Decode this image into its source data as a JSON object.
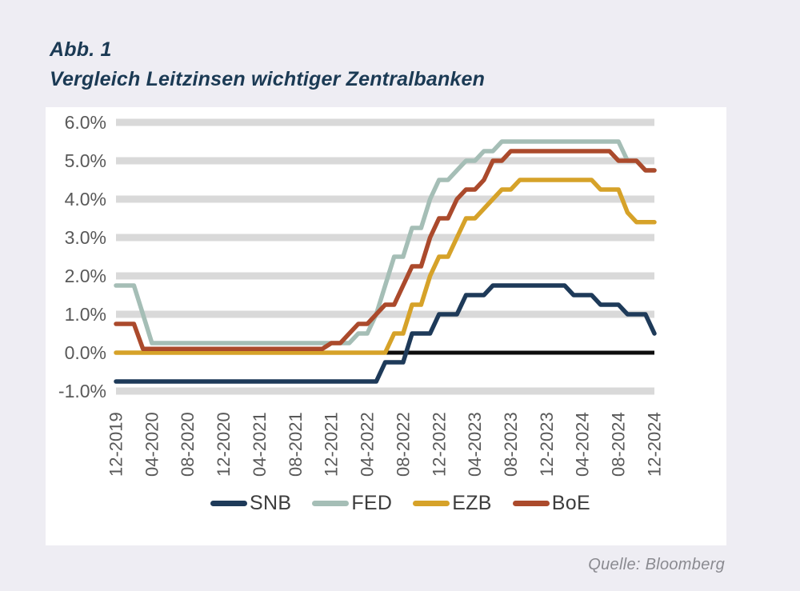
{
  "figure": {
    "label": "Abb. 1",
    "title": "Vergleich Leitzinsen wichtiger Zentralbanken"
  },
  "source": "Quelle: Bloomberg",
  "colors": {
    "page_background": "#eeedf3",
    "panel_background": "#ffffff",
    "gridline_band": "#d9d9d9",
    "zero_axis": "#0d0d0d",
    "title_text": "#1b3a54",
    "axis_text": "#595959",
    "legend_text": "#3d3d3d",
    "source_text": "#8a8a90"
  },
  "chart_data": {
    "type": "line",
    "title": "Vergleich Leitzinsen wichtiger Zentralbanken",
    "xlabel": "",
    "ylabel": "",
    "x_unit": "monthly, 12-2019 through 12-2024",
    "ylim": [
      -1.0,
      6.0
    ],
    "grid": "horizontal bands",
    "legend_position": "bottom",
    "y_ticks": [
      {
        "label": "6.0%",
        "value": 6.0
      },
      {
        "label": "5.0%",
        "value": 5.0
      },
      {
        "label": "4.0%",
        "value": 4.0
      },
      {
        "label": "3.0%",
        "value": 3.0
      },
      {
        "label": "2.0%",
        "value": 2.0
      },
      {
        "label": "1.0%",
        "value": 1.0
      },
      {
        "label": "0.0%",
        "value": 0.0
      },
      {
        "label": "-1.0%",
        "value": -1.0
      }
    ],
    "gridline_levels": [
      6,
      5,
      4,
      3,
      2,
      1,
      -1
    ],
    "zero_axis_at": 0.0,
    "x_ticks": [
      {
        "label": "12-2019",
        "month": 0
      },
      {
        "label": "04-2020",
        "month": 4
      },
      {
        "label": "08-2020",
        "month": 8
      },
      {
        "label": "12-2020",
        "month": 12
      },
      {
        "label": "04-2021",
        "month": 16
      },
      {
        "label": "08-2021",
        "month": 20
      },
      {
        "label": "12-2021",
        "month": 24
      },
      {
        "label": "04-2022",
        "month": 28
      },
      {
        "label": "08-2022",
        "month": 32
      },
      {
        "label": "12-2022",
        "month": 36
      },
      {
        "label": "04-2023",
        "month": 40
      },
      {
        "label": "08-2023",
        "month": 44
      },
      {
        "label": "12-2023",
        "month": 48
      },
      {
        "label": "04-2024",
        "month": 52
      },
      {
        "label": "08-2024",
        "month": 56
      },
      {
        "label": "12-2024",
        "month": 60
      }
    ],
    "series": [
      {
        "name": "SNB",
        "color": "#1e3a59",
        "values": [
          -0.75,
          -0.75,
          -0.75,
          -0.75,
          -0.75,
          -0.75,
          -0.75,
          -0.75,
          -0.75,
          -0.75,
          -0.75,
          -0.75,
          -0.75,
          -0.75,
          -0.75,
          -0.75,
          -0.75,
          -0.75,
          -0.75,
          -0.75,
          -0.75,
          -0.75,
          -0.75,
          -0.75,
          -0.75,
          -0.75,
          -0.75,
          -0.75,
          -0.75,
          -0.75,
          -0.25,
          -0.25,
          -0.25,
          0.5,
          0.5,
          0.5,
          1.0,
          1.0,
          1.0,
          1.5,
          1.5,
          1.5,
          1.75,
          1.75,
          1.75,
          1.75,
          1.75,
          1.75,
          1.75,
          1.75,
          1.75,
          1.5,
          1.5,
          1.5,
          1.25,
          1.25,
          1.25,
          1.0,
          1.0,
          1.0,
          0.5
        ]
      },
      {
        "name": "FED",
        "color": "#a5beb6",
        "values": [
          1.75,
          1.75,
          1.75,
          1.0,
          0.25,
          0.25,
          0.25,
          0.25,
          0.25,
          0.25,
          0.25,
          0.25,
          0.25,
          0.25,
          0.25,
          0.25,
          0.25,
          0.25,
          0.25,
          0.25,
          0.25,
          0.25,
          0.25,
          0.25,
          0.25,
          0.25,
          0.25,
          0.5,
          0.5,
          1.0,
          1.75,
          2.5,
          2.5,
          3.25,
          3.25,
          4.0,
          4.5,
          4.5,
          4.75,
          5.0,
          5.0,
          5.25,
          5.25,
          5.5,
          5.5,
          5.5,
          5.5,
          5.5,
          5.5,
          5.5,
          5.5,
          5.5,
          5.5,
          5.5,
          5.5,
          5.5,
          5.5,
          5.0,
          5.0,
          4.75,
          4.75
        ]
      },
      {
        "name": "EZB",
        "color": "#d6a229",
        "values": [
          0.0,
          0.0,
          0.0,
          0.0,
          0.0,
          0.0,
          0.0,
          0.0,
          0.0,
          0.0,
          0.0,
          0.0,
          0.0,
          0.0,
          0.0,
          0.0,
          0.0,
          0.0,
          0.0,
          0.0,
          0.0,
          0.0,
          0.0,
          0.0,
          0.0,
          0.0,
          0.0,
          0.0,
          0.0,
          0.0,
          0.0,
          0.5,
          0.5,
          1.25,
          1.25,
          2.0,
          2.5,
          2.5,
          3.0,
          3.5,
          3.5,
          3.75,
          4.0,
          4.25,
          4.25,
          4.5,
          4.5,
          4.5,
          4.5,
          4.5,
          4.5,
          4.5,
          4.5,
          4.5,
          4.25,
          4.25,
          4.25,
          3.65,
          3.4,
          3.4,
          3.4
        ]
      },
      {
        "name": "BoE",
        "color": "#ab4a2c",
        "values": [
          0.75,
          0.75,
          0.75,
          0.1,
          0.1,
          0.1,
          0.1,
          0.1,
          0.1,
          0.1,
          0.1,
          0.1,
          0.1,
          0.1,
          0.1,
          0.1,
          0.1,
          0.1,
          0.1,
          0.1,
          0.1,
          0.1,
          0.1,
          0.1,
          0.25,
          0.25,
          0.5,
          0.75,
          0.75,
          1.0,
          1.25,
          1.25,
          1.75,
          2.25,
          2.25,
          3.0,
          3.5,
          3.5,
          4.0,
          4.25,
          4.25,
          4.5,
          5.0,
          5.0,
          5.25,
          5.25,
          5.25,
          5.25,
          5.25,
          5.25,
          5.25,
          5.25,
          5.25,
          5.25,
          5.25,
          5.25,
          5.0,
          5.0,
          5.0,
          4.75,
          4.75
        ]
      }
    ],
    "draw_order": [
      1,
      2,
      3,
      0
    ]
  }
}
